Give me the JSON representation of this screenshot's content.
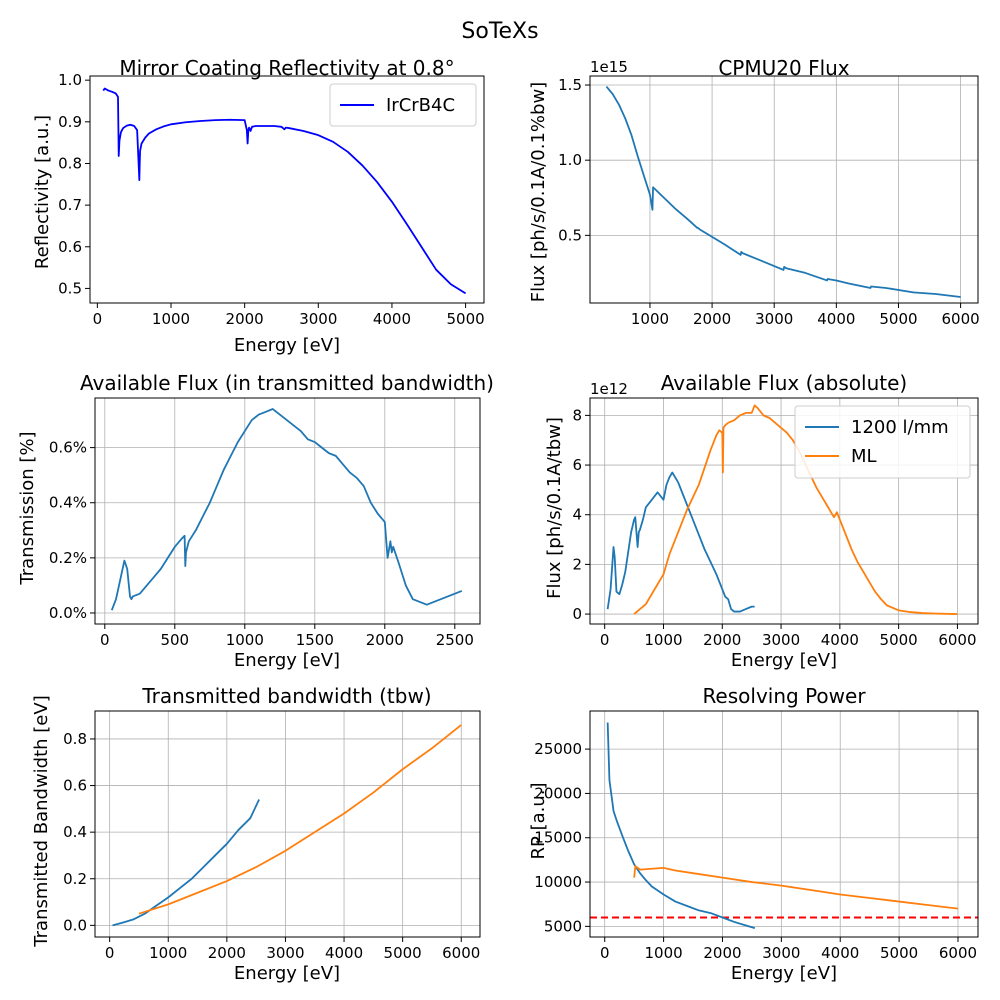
{
  "figure": {
    "suptitle": "SoTeXs"
  },
  "chart_data": [
    {
      "id": "reflectivity",
      "type": "line",
      "title": "Mirror Coating Reflectivity at 0.8°",
      "xlabel": "Energy [eV]",
      "ylabel": "Reflectivity [a.u.]",
      "xlim": [
        -100,
        5250
      ],
      "ylim": [
        0.465,
        1.01
      ],
      "xticks": [
        0,
        1000,
        2000,
        3000,
        4000,
        5000
      ],
      "xtick_labels": [
        "0",
        "1000",
        "2000",
        "3000",
        "4000",
        "5000"
      ],
      "yticks": [
        0.5,
        0.6,
        0.7,
        0.8,
        0.9,
        1.0
      ],
      "ytick_labels": [
        "0.5",
        "0.6",
        "0.7",
        "0.8",
        "0.9",
        "1.0"
      ],
      "grid": false,
      "legend": "upper-right",
      "series": [
        {
          "name": "IrCrB4C",
          "color": "#0000ff",
          "x": [
            80,
            100,
            150,
            200,
            250,
            280,
            290,
            300,
            320,
            350,
            400,
            450,
            500,
            540,
            560,
            570,
            575,
            580,
            600,
            650,
            700,
            800,
            900,
            1000,
            1200,
            1400,
            1600,
            1800,
            2000,
            2030,
            2040,
            2050,
            2060,
            2080,
            2100,
            2150,
            2200,
            2300,
            2400,
            2500,
            2540,
            2560,
            2600,
            2800,
            3000,
            3200,
            3400,
            3600,
            3800,
            4000,
            4200,
            4400,
            4600,
            4800,
            5000
          ],
          "y": [
            0.975,
            0.98,
            0.975,
            0.972,
            0.968,
            0.96,
            0.818,
            0.855,
            0.875,
            0.885,
            0.891,
            0.893,
            0.89,
            0.88,
            0.8,
            0.76,
            0.8,
            0.83,
            0.848,
            0.862,
            0.872,
            0.882,
            0.889,
            0.894,
            0.899,
            0.902,
            0.904,
            0.905,
            0.904,
            0.88,
            0.848,
            0.88,
            0.886,
            0.878,
            0.888,
            0.89,
            0.89,
            0.89,
            0.89,
            0.888,
            0.882,
            0.886,
            0.885,
            0.878,
            0.868,
            0.852,
            0.828,
            0.795,
            0.755,
            0.708,
            0.655,
            0.6,
            0.545,
            0.51,
            0.488
          ]
        }
      ]
    },
    {
      "id": "cpmu20",
      "type": "line",
      "title": "CPMU20 Flux",
      "xlabel": "",
      "ylabel": "Flux [ph/s/0.1A/0.1%bw]",
      "offset_text": "1e15",
      "xlim": [
        35,
        6280
      ],
      "ylim": [
        0.05,
        1.56
      ],
      "xticks": [
        1000,
        2000,
        3000,
        4000,
        5000,
        6000
      ],
      "xtick_labels": [
        "1000",
        "2000",
        "3000",
        "4000",
        "5000",
        "6000"
      ],
      "yticks": [
        0.5,
        1.0,
        1.5
      ],
      "ytick_labels": [
        "0.5",
        "1.0",
        "1.5"
      ],
      "grid": true,
      "series": [
        {
          "name": "",
          "color": "#1f77b4",
          "x": [
            300,
            400,
            500,
            600,
            700,
            800,
            900,
            1000,
            1040,
            1050,
            1100,
            1200,
            1400,
            1600,
            1760,
            1770,
            1800,
            2000,
            2200,
            2460,
            2470,
            2500,
            2800,
            3150,
            3160,
            3200,
            3500,
            3850,
            3860,
            4000,
            4200,
            4550,
            4560,
            4800,
            5250,
            5260,
            5600,
            6000
          ],
          "y": [
            1.49,
            1.44,
            1.37,
            1.28,
            1.17,
            1.03,
            0.9,
            0.77,
            0.67,
            0.82,
            0.8,
            0.76,
            0.68,
            0.61,
            0.55,
            0.55,
            0.54,
            0.49,
            0.44,
            0.37,
            0.39,
            0.38,
            0.33,
            0.27,
            0.29,
            0.28,
            0.25,
            0.2,
            0.21,
            0.2,
            0.18,
            0.15,
            0.16,
            0.15,
            0.12,
            0.12,
            0.11,
            0.09
          ]
        }
      ]
    },
    {
      "id": "transmission",
      "type": "line",
      "title": "Available Flux (in transmitted bandwidth)",
      "xlabel": "Energy [eV]",
      "ylabel": "Transmission [%]",
      "xlim": [
        -70,
        2680
      ],
      "ylim": [
        -0.04,
        0.78
      ],
      "xticks": [
        0,
        500,
        1000,
        1500,
        2000,
        2500
      ],
      "xtick_labels": [
        "0",
        "500",
        "1000",
        "1500",
        "2000",
        "2500"
      ],
      "yticks": [
        0.0,
        0.2,
        0.4,
        0.6
      ],
      "ytick_labels": [
        "0.0%",
        "0.2%",
        "0.4%",
        "0.6%"
      ],
      "grid": true,
      "series": [
        {
          "name": "",
          "color": "#1f77b4",
          "x": [
            50,
            80,
            110,
            140,
            160,
            180,
            190,
            200,
            250,
            300,
            350,
            400,
            450,
            500,
            550,
            570,
            575,
            580,
            600,
            650,
            700,
            750,
            800,
            850,
            900,
            950,
            1000,
            1050,
            1100,
            1150,
            1200,
            1250,
            1300,
            1350,
            1400,
            1450,
            1500,
            1550,
            1600,
            1650,
            1700,
            1750,
            1800,
            1850,
            1900,
            1950,
            2000,
            2020,
            2040,
            2050,
            2060,
            2100,
            2150,
            2200,
            2250,
            2300,
            2350,
            2400,
            2450,
            2500,
            2550
          ],
          "y": [
            0.01,
            0.05,
            0.12,
            0.19,
            0.16,
            0.06,
            0.05,
            0.06,
            0.07,
            0.1,
            0.13,
            0.16,
            0.2,
            0.24,
            0.27,
            0.28,
            0.17,
            0.22,
            0.26,
            0.3,
            0.35,
            0.4,
            0.46,
            0.52,
            0.57,
            0.62,
            0.66,
            0.7,
            0.72,
            0.73,
            0.74,
            0.72,
            0.7,
            0.68,
            0.66,
            0.63,
            0.62,
            0.6,
            0.58,
            0.57,
            0.54,
            0.51,
            0.49,
            0.46,
            0.4,
            0.36,
            0.33,
            0.2,
            0.26,
            0.22,
            0.24,
            0.18,
            0.1,
            0.05,
            0.04,
            0.03,
            0.04,
            0.05,
            0.06,
            0.07,
            0.08
          ]
        }
      ]
    },
    {
      "id": "absolute_flux",
      "type": "line",
      "title": "Available Flux (absolute)",
      "xlabel": "Energy [eV]",
      "ylabel": "Flux [ph/s/0.1A/tbw]",
      "offset_text": "1e12",
      "xlim": [
        -250,
        6350
      ],
      "ylim": [
        -0.4,
        8.7
      ],
      "xticks": [
        0,
        1000,
        2000,
        3000,
        4000,
        5000,
        6000
      ],
      "xtick_labels": [
        "0",
        "1000",
        "2000",
        "3000",
        "4000",
        "5000",
        "6000"
      ],
      "yticks": [
        0,
        2,
        4,
        6,
        8
      ],
      "ytick_labels": [
        "0",
        "2",
        "4",
        "6",
        "8"
      ],
      "grid": true,
      "legend": "upper-right",
      "series": [
        {
          "name": "1200 l/mm",
          "color": "#1f77b4",
          "x": [
            50,
            100,
            150,
            170,
            200,
            250,
            300,
            350,
            400,
            450,
            500,
            520,
            560,
            580,
            600,
            650,
            700,
            800,
            900,
            1000,
            1050,
            1100,
            1150,
            1200,
            1250,
            1300,
            1400,
            1500,
            1600,
            1700,
            1800,
            1900,
            2000,
            2050,
            2100,
            2150,
            2200,
            2300,
            2400,
            2500,
            2550
          ],
          "y": [
            0.2,
            1.0,
            2.7,
            2.3,
            0.9,
            0.8,
            1.2,
            1.7,
            2.5,
            3.3,
            3.8,
            3.9,
            2.7,
            3.3,
            3.4,
            3.8,
            4.3,
            4.6,
            4.9,
            4.6,
            5.2,
            5.5,
            5.7,
            5.5,
            5.3,
            5.0,
            4.4,
            3.8,
            3.2,
            2.6,
            2.1,
            1.6,
            1.0,
            0.7,
            0.6,
            0.2,
            0.1,
            0.1,
            0.2,
            0.3,
            0.3
          ]
        },
        {
          "name": "ML",
          "color": "#ff7f0e",
          "x": [
            500,
            600,
            700,
            800,
            900,
            1000,
            1100,
            1200,
            1300,
            1400,
            1500,
            1600,
            1700,
            1800,
            1900,
            1950,
            2000,
            2010,
            2020,
            2050,
            2100,
            2200,
            2300,
            2400,
            2500,
            2550,
            2600,
            2700,
            2800,
            2900,
            3000,
            3100,
            3200,
            3300,
            3400,
            3500,
            3600,
            3700,
            3800,
            3900,
            3950,
            4000,
            4100,
            4200,
            4300,
            4400,
            4500,
            4600,
            4700,
            4800,
            5000,
            5200,
            5400,
            5600,
            5800,
            6000
          ],
          "y": [
            0.0,
            0.2,
            0.4,
            0.8,
            1.2,
            1.6,
            2.4,
            3.0,
            3.6,
            4.2,
            4.7,
            5.2,
            5.9,
            6.6,
            7.2,
            7.4,
            7.3,
            5.7,
            7.5,
            7.6,
            7.7,
            7.8,
            8.0,
            8.1,
            8.1,
            8.4,
            8.3,
            8.0,
            7.9,
            7.7,
            7.5,
            7.3,
            7.0,
            6.6,
            6.1,
            5.6,
            5.1,
            4.7,
            4.3,
            3.9,
            4.1,
            3.8,
            3.2,
            2.6,
            2.1,
            1.7,
            1.3,
            0.9,
            0.6,
            0.35,
            0.15,
            0.08,
            0.04,
            0.02,
            0.01,
            0.0
          ]
        }
      ]
    },
    {
      "id": "bandwidth",
      "type": "line",
      "title": "Transmitted bandwidth (tbw)",
      "xlabel": "Energy [eV]",
      "ylabel": "Transmitted Bandwidth [eV]",
      "xlim": [
        -250,
        6320
      ],
      "ylim": [
        -0.05,
        0.92
      ],
      "xticks": [
        0,
        1000,
        2000,
        3000,
        4000,
        5000,
        6000
      ],
      "xtick_labels": [
        "0",
        "1000",
        "2000",
        "3000",
        "4000",
        "5000",
        "6000"
      ],
      "yticks": [
        0.0,
        0.2,
        0.4,
        0.6,
        0.8
      ],
      "ytick_labels": [
        "0.0",
        "0.2",
        "0.4",
        "0.6",
        "0.8"
      ],
      "grid": true,
      "series": [
        {
          "name": "",
          "color": "#1f77b4",
          "x": [
            50,
            200,
            400,
            600,
            800,
            1000,
            1200,
            1400,
            1600,
            1800,
            2000,
            2200,
            2400,
            2550
          ],
          "y": [
            0.0,
            0.01,
            0.025,
            0.05,
            0.085,
            0.12,
            0.16,
            0.2,
            0.25,
            0.3,
            0.35,
            0.41,
            0.46,
            0.54
          ]
        },
        {
          "name": "",
          "color": "#ff7f0e",
          "x": [
            500,
            1000,
            1500,
            2000,
            2500,
            3000,
            3500,
            4000,
            4500,
            5000,
            5500,
            6000
          ],
          "y": [
            0.05,
            0.09,
            0.14,
            0.19,
            0.25,
            0.32,
            0.4,
            0.48,
            0.57,
            0.67,
            0.76,
            0.86
          ]
        }
      ]
    },
    {
      "id": "resolving_power",
      "type": "line",
      "title": "Resolving Power",
      "xlabel": "Energy [eV]",
      "ylabel": "RP [a.u.]",
      "xlim": [
        -250,
        6340
      ],
      "ylim": [
        3800,
        29300
      ],
      "xticks": [
        0,
        1000,
        2000,
        3000,
        4000,
        5000,
        6000
      ],
      "xtick_labels": [
        "0",
        "1000",
        "2000",
        "3000",
        "4000",
        "5000",
        "6000"
      ],
      "yticks": [
        5000,
        10000,
        15000,
        20000,
        25000
      ],
      "ytick_labels": [
        "5000",
        "10000",
        "15000",
        "20000",
        "25000"
      ],
      "grid": true,
      "hline": {
        "y": 6000,
        "color": "#ff0000",
        "style": "dashed"
      },
      "series": [
        {
          "name": "",
          "color": "#1f77b4",
          "x": [
            50,
            80,
            100,
            150,
            200,
            300,
            400,
            500,
            600,
            700,
            800,
            1000,
            1200,
            1400,
            1600,
            1800,
            2000,
            2200,
            2400,
            2550
          ],
          "y": [
            28000,
            21500,
            20500,
            18000,
            17000,
            15200,
            13500,
            12000,
            11000,
            10200,
            9500,
            8600,
            7800,
            7300,
            6800,
            6500,
            6000,
            5500,
            5100,
            4800
          ]
        },
        {
          "name": "",
          "color": "#ff7f0e",
          "x": [
            500,
            520,
            600,
            800,
            1000,
            1200,
            1500,
            2000,
            2500,
            3000,
            3500,
            4000,
            4500,
            5000,
            5500,
            6000
          ],
          "y": [
            10500,
            11800,
            11400,
            11500,
            11600,
            11300,
            11000,
            10500,
            10000,
            9600,
            9100,
            8600,
            8200,
            7800,
            7400,
            7000
          ]
        }
      ]
    }
  ]
}
